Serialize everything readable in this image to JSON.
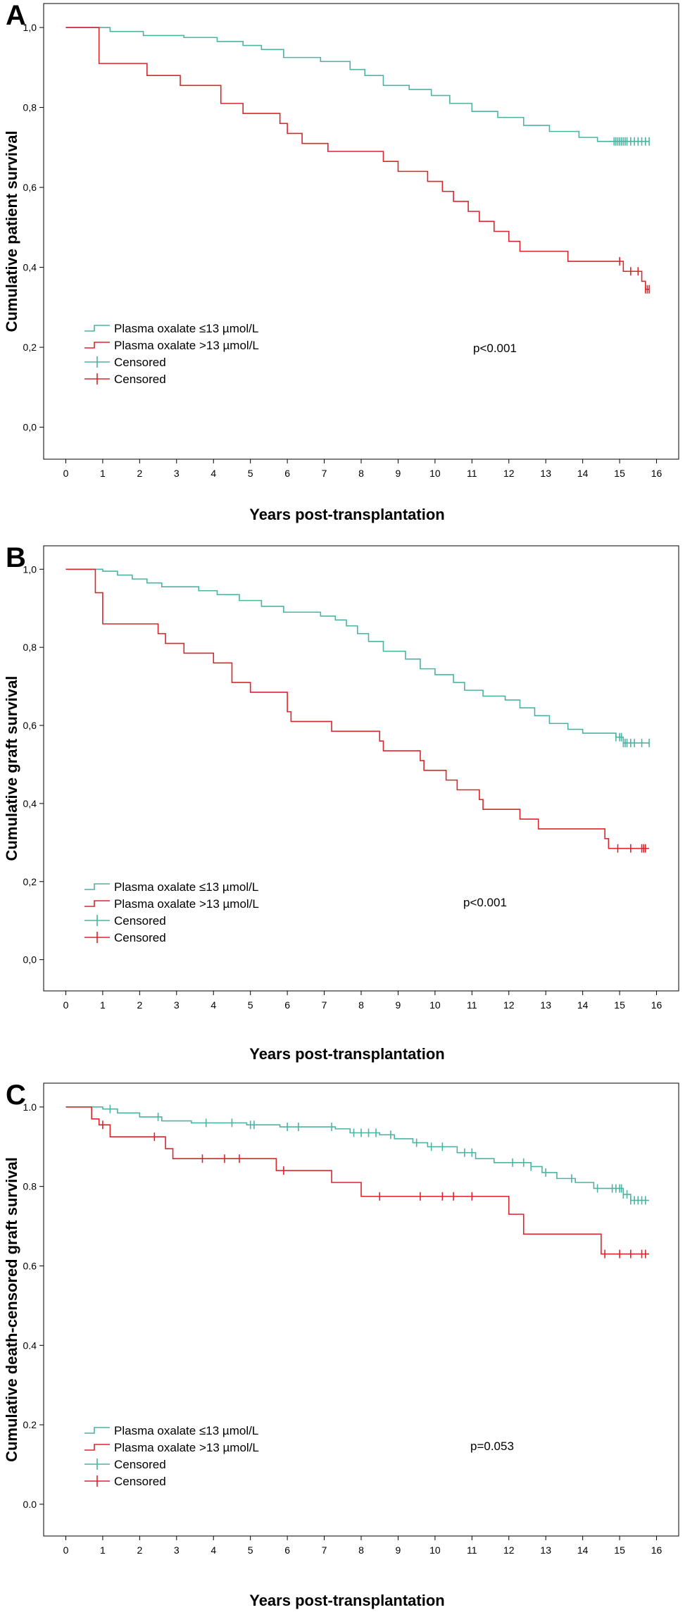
{
  "colors": {
    "group_low": "#4db3a2",
    "group_high": "#d9262c",
    "axis": "#000000"
  },
  "chart_data": [
    {
      "type": "line",
      "panel_label": "A",
      "xlabel": "Years post-transplantation",
      "ylabel": "Cumulative patient survival",
      "x_ticks": [
        "0",
        "1",
        "2",
        "3",
        "4",
        "5",
        "6",
        "7",
        "8",
        "9",
        "10",
        "11",
        "12",
        "13",
        "14",
        "15",
        "16"
      ],
      "y_ticks": [
        "0,0",
        "0,2",
        "0,4",
        "0,6",
        "0,8",
        "1,0"
      ],
      "xlim": [
        -0.6,
        16.6
      ],
      "ylim": [
        -0.08,
        1.06
      ],
      "p_value": "p<0.001",
      "legend": [
        "Plasma oxalate ≤13 µmol/L",
        "Plasma oxalate >13 µmol/L",
        "Censored",
        "Censored"
      ],
      "series": [
        {
          "name": "Plasma oxalate ≤13 µmol/L",
          "color_key": "group_low",
          "steps": [
            [
              0,
              1.0
            ],
            [
              1.2,
              0.99
            ],
            [
              2.1,
              0.98
            ],
            [
              3.2,
              0.975
            ],
            [
              4.1,
              0.965
            ],
            [
              4.8,
              0.955
            ],
            [
              5.3,
              0.945
            ],
            [
              5.9,
              0.925
            ],
            [
              6.9,
              0.915
            ],
            [
              7.7,
              0.895
            ],
            [
              8.1,
              0.88
            ],
            [
              8.6,
              0.855
            ],
            [
              9.3,
              0.845
            ],
            [
              9.9,
              0.83
            ],
            [
              10.4,
              0.81
            ],
            [
              11.0,
              0.79
            ],
            [
              11.7,
              0.775
            ],
            [
              12.4,
              0.755
            ],
            [
              13.1,
              0.74
            ],
            [
              13.9,
              0.725
            ],
            [
              14.4,
              0.715
            ],
            [
              15.8,
              0.715
            ]
          ],
          "censored": [
            14.85,
            14.9,
            14.95,
            15.0,
            15.05,
            15.1,
            15.15,
            15.2,
            15.3,
            15.4,
            15.5,
            15.6,
            15.7,
            15.8
          ]
        },
        {
          "name": "Plasma oxalate >13 µmol/L",
          "color_key": "group_high",
          "steps": [
            [
              0,
              1.0
            ],
            [
              0.9,
              0.91
            ],
            [
              2.2,
              0.88
            ],
            [
              3.1,
              0.855
            ],
            [
              4.2,
              0.81
            ],
            [
              4.8,
              0.785
            ],
            [
              5.8,
              0.76
            ],
            [
              6.0,
              0.735
            ],
            [
              6.4,
              0.71
            ],
            [
              7.1,
              0.69
            ],
            [
              8.6,
              0.665
            ],
            [
              9.0,
              0.64
            ],
            [
              9.8,
              0.615
            ],
            [
              10.2,
              0.59
            ],
            [
              10.5,
              0.565
            ],
            [
              10.9,
              0.54
            ],
            [
              11.2,
              0.515
            ],
            [
              11.6,
              0.49
            ],
            [
              12.0,
              0.465
            ],
            [
              12.3,
              0.44
            ],
            [
              13.6,
              0.415
            ],
            [
              15.1,
              0.39
            ],
            [
              15.6,
              0.365
            ],
            [
              15.7,
              0.345
            ],
            [
              15.8,
              0.345
            ]
          ],
          "censored": [
            15.0,
            15.3,
            15.5,
            15.7,
            15.75,
            15.8
          ]
        }
      ]
    },
    {
      "type": "line",
      "panel_label": "B",
      "xlabel": "Years post-transplantation",
      "ylabel": "Cumulative graft survival",
      "x_ticks": [
        "0",
        "1",
        "2",
        "3",
        "4",
        "5",
        "6",
        "7",
        "8",
        "9",
        "10",
        "11",
        "12",
        "13",
        "14",
        "15",
        "16"
      ],
      "y_ticks": [
        "0,0",
        "0,2",
        "0,4",
        "0,6",
        "0,8",
        "1,0"
      ],
      "xlim": [
        -0.6,
        16.6
      ],
      "ylim": [
        -0.08,
        1.06
      ],
      "p_value": "p<0.001",
      "legend": [
        "Plasma oxalate ≤13 µmol/L",
        "Plasma oxalate >13 µmol/L",
        "Censored",
        "Censored"
      ],
      "series": [
        {
          "name": "Plasma oxalate ≤13 µmol/L",
          "color_key": "group_low",
          "steps": [
            [
              0,
              1.0
            ],
            [
              1.0,
              0.995
            ],
            [
              1.4,
              0.985
            ],
            [
              1.8,
              0.975
            ],
            [
              2.2,
              0.965
            ],
            [
              2.6,
              0.955
            ],
            [
              3.6,
              0.945
            ],
            [
              4.1,
              0.935
            ],
            [
              4.7,
              0.92
            ],
            [
              5.3,
              0.905
            ],
            [
              5.9,
              0.89
            ],
            [
              6.9,
              0.88
            ],
            [
              7.3,
              0.87
            ],
            [
              7.6,
              0.855
            ],
            [
              7.9,
              0.835
            ],
            [
              8.2,
              0.815
            ],
            [
              8.6,
              0.79
            ],
            [
              9.2,
              0.77
            ],
            [
              9.6,
              0.745
            ],
            [
              10.0,
              0.73
            ],
            [
              10.5,
              0.71
            ],
            [
              10.8,
              0.69
            ],
            [
              11.3,
              0.675
            ],
            [
              11.9,
              0.665
            ],
            [
              12.3,
              0.645
            ],
            [
              12.7,
              0.625
            ],
            [
              13.1,
              0.605
            ],
            [
              13.6,
              0.59
            ],
            [
              14.0,
              0.58
            ],
            [
              14.9,
              0.57
            ],
            [
              15.1,
              0.555
            ],
            [
              15.8,
              0.555
            ]
          ],
          "censored": [
            14.9,
            15.0,
            15.05,
            15.1,
            15.15,
            15.2,
            15.3,
            15.4,
            15.6,
            15.8
          ]
        },
        {
          "name": "Plasma oxalate >13 µmol/L",
          "color_key": "group_high",
          "steps": [
            [
              0,
              1.0
            ],
            [
              0.8,
              0.94
            ],
            [
              1.0,
              0.86
            ],
            [
              2.5,
              0.835
            ],
            [
              2.7,
              0.81
            ],
            [
              3.2,
              0.785
            ],
            [
              4.0,
              0.76
            ],
            [
              4.5,
              0.71
            ],
            [
              5.0,
              0.685
            ],
            [
              6.0,
              0.635
            ],
            [
              6.1,
              0.61
            ],
            [
              7.2,
              0.585
            ],
            [
              8.5,
              0.56
            ],
            [
              8.6,
              0.535
            ],
            [
              9.6,
              0.51
            ],
            [
              9.7,
              0.485
            ],
            [
              10.3,
              0.46
            ],
            [
              10.6,
              0.435
            ],
            [
              11.2,
              0.41
            ],
            [
              11.3,
              0.385
            ],
            [
              12.3,
              0.36
            ],
            [
              12.8,
              0.335
            ],
            [
              14.6,
              0.31
            ],
            [
              14.7,
              0.285
            ],
            [
              15.8,
              0.285
            ]
          ],
          "censored": [
            14.95,
            15.3,
            15.6,
            15.65,
            15.7
          ]
        }
      ]
    },
    {
      "type": "line",
      "panel_label": "C",
      "xlabel": "Years post-transplantation",
      "ylabel": "Cumulative death-censored graft survival",
      "x_ticks": [
        "0",
        "1",
        "2",
        "3",
        "4",
        "5",
        "6",
        "7",
        "8",
        "9",
        "10",
        "11",
        "12",
        "13",
        "14",
        "15",
        "16"
      ],
      "y_ticks": [
        "0.0",
        "0.2",
        "0.4",
        "0.6",
        "0.8",
        "1.0"
      ],
      "xlim": [
        -0.6,
        16.6
      ],
      "ylim": [
        -0.08,
        1.06
      ],
      "p_value": "p=0.053",
      "legend": [
        "Plasma oxalate ≤13 µmol/L",
        "Plasma oxalate >13 µmol/L",
        "Censored",
        "Censored"
      ],
      "series": [
        {
          "name": "Plasma oxalate ≤13 µmol/L",
          "color_key": "group_low",
          "steps": [
            [
              0,
              1.0
            ],
            [
              1.0,
              0.995
            ],
            [
              1.4,
              0.985
            ],
            [
              2.0,
              0.975
            ],
            [
              2.6,
              0.965
            ],
            [
              3.4,
              0.96
            ],
            [
              4.9,
              0.955
            ],
            [
              5.8,
              0.95
            ],
            [
              7.3,
              0.945
            ],
            [
              7.7,
              0.935
            ],
            [
              8.5,
              0.93
            ],
            [
              8.9,
              0.92
            ],
            [
              9.4,
              0.91
            ],
            [
              9.8,
              0.9
            ],
            [
              10.6,
              0.885
            ],
            [
              11.1,
              0.87
            ],
            [
              11.6,
              0.86
            ],
            [
              12.6,
              0.85
            ],
            [
              12.9,
              0.835
            ],
            [
              13.3,
              0.82
            ],
            [
              13.8,
              0.81
            ],
            [
              14.3,
              0.795
            ],
            [
              15.1,
              0.78
            ],
            [
              15.3,
              0.765
            ],
            [
              15.8,
              0.765
            ]
          ],
          "censored": [
            1.2,
            2.5,
            3.8,
            4.5,
            5.0,
            5.1,
            6.0,
            6.3,
            7.2,
            7.8,
            8.0,
            8.2,
            8.4,
            8.8,
            9.5,
            9.9,
            10.2,
            10.8,
            11.0,
            12.1,
            12.4,
            12.6,
            13.0,
            13.7,
            14.4,
            14.8,
            14.9,
            15.0,
            15.05,
            15.1,
            15.2,
            15.3,
            15.4,
            15.5,
            15.6,
            15.7
          ]
        },
        {
          "name": "Plasma oxalate >13 µmol/L",
          "color_key": "group_high",
          "steps": [
            [
              0,
              1.0
            ],
            [
              0.7,
              0.97
            ],
            [
              0.9,
              0.955
            ],
            [
              1.2,
              0.925
            ],
            [
              2.7,
              0.895
            ],
            [
              2.9,
              0.87
            ],
            [
              5.7,
              0.84
            ],
            [
              7.2,
              0.81
            ],
            [
              8.0,
              0.775
            ],
            [
              12.0,
              0.73
            ],
            [
              12.4,
              0.68
            ],
            [
              14.5,
              0.63
            ],
            [
              15.8,
              0.63
            ]
          ],
          "censored": [
            1.0,
            2.4,
            3.7,
            4.3,
            4.7,
            5.9,
            8.5,
            9.6,
            10.2,
            10.5,
            11.0,
            14.6,
            15.0,
            15.3,
            15.6,
            15.7
          ]
        }
      ]
    }
  ]
}
